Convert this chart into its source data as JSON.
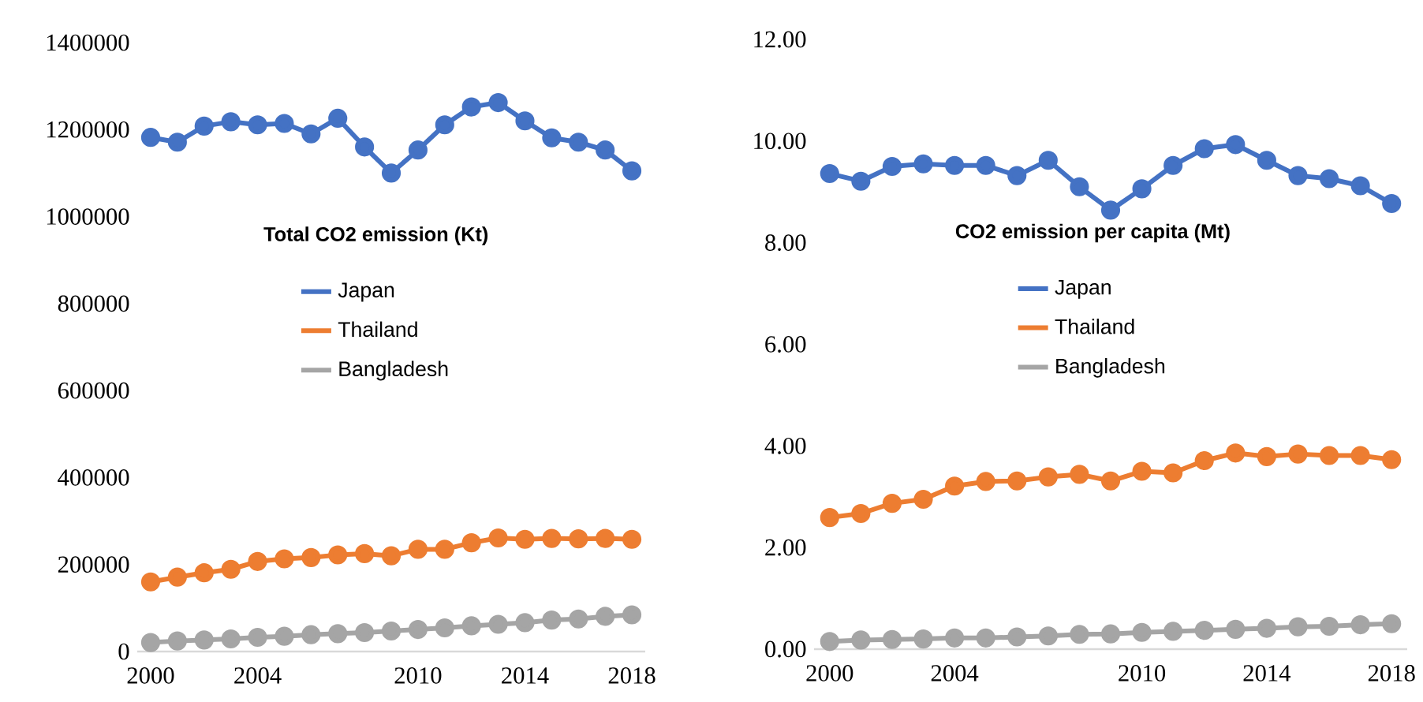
{
  "chart_data": [
    {
      "type": "line",
      "title": "Total CO2 emission (Kt)",
      "x": [
        2000,
        2001,
        2002,
        2003,
        2004,
        2005,
        2006,
        2007,
        2008,
        2009,
        2010,
        2011,
        2012,
        2013,
        2014,
        2015,
        2016,
        2017,
        2018
      ],
      "xlim": [
        1999.5,
        2018.5
      ],
      "xticks": [
        2000,
        2004,
        2010,
        2014,
        2018
      ],
      "ylim": [
        0,
        1400000
      ],
      "yticks": [
        0,
        200000,
        400000,
        600000,
        800000,
        1000000,
        1200000,
        1400000
      ],
      "marker": "circle",
      "legend": "center",
      "series": [
        {
          "name": "Japan",
          "color": "#4472c4",
          "values": [
            1182000,
            1171000,
            1208000,
            1218000,
            1211000,
            1214000,
            1190000,
            1226000,
            1160000,
            1100000,
            1153000,
            1211000,
            1252000,
            1262000,
            1220000,
            1181000,
            1171000,
            1153000,
            1105000
          ]
        },
        {
          "name": "Thailand",
          "color": "#ed7d31",
          "values": [
            160000,
            171000,
            181000,
            189000,
            207000,
            213000,
            216000,
            222000,
            225000,
            220000,
            235000,
            235000,
            250000,
            261000,
            258000,
            260000,
            259000,
            260000,
            258000
          ]
        },
        {
          "name": "Bangladesh",
          "color": "#a5a5a5",
          "values": [
            20600,
            24200,
            26500,
            28900,
            32600,
            35000,
            38600,
            41000,
            43400,
            47000,
            50600,
            54300,
            59000,
            62600,
            66300,
            72300,
            74800,
            80800,
            84300
          ]
        }
      ]
    },
    {
      "type": "line",
      "title": "CO2 emission per capita (Mt)",
      "x": [
        2000,
        2001,
        2002,
        2003,
        2004,
        2005,
        2006,
        2007,
        2008,
        2009,
        2010,
        2011,
        2012,
        2013,
        2014,
        2015,
        2016,
        2017,
        2018
      ],
      "xlim": [
        1999.5,
        2018.5
      ],
      "xticks": [
        2000,
        2004,
        2010,
        2014,
        2018
      ],
      "ylim": [
        0,
        12
      ],
      "yticks": [
        {
          "value": 0,
          "label": "0.00"
        },
        {
          "value": 2,
          "label": "2.00"
        },
        {
          "value": 4,
          "label": "4.00"
        },
        {
          "value": 6,
          "label": "6.00"
        },
        {
          "value": 8,
          "label": "8.00"
        },
        {
          "value": 10,
          "label": "10.00"
        },
        {
          "value": 12,
          "label": "12.00"
        }
      ],
      "marker": "circle",
      "legend": "center",
      "series": [
        {
          "name": "Japan",
          "color": "#4472c4",
          "values": [
            9.36,
            9.21,
            9.5,
            9.55,
            9.52,
            9.52,
            9.32,
            9.62,
            9.1,
            8.64,
            9.06,
            9.52,
            9.85,
            9.93,
            9.62,
            9.32,
            9.26,
            9.12,
            8.77
          ]
        },
        {
          "name": "Thailand",
          "color": "#ed7d31",
          "values": [
            2.59,
            2.67,
            2.87,
            2.95,
            3.21,
            3.3,
            3.31,
            3.39,
            3.44,
            3.31,
            3.5,
            3.47,
            3.71,
            3.86,
            3.79,
            3.84,
            3.81,
            3.81,
            3.73
          ]
        },
        {
          "name": "Bangladesh",
          "color": "#a5a5a5",
          "values": [
            0.15,
            0.18,
            0.19,
            0.2,
            0.22,
            0.22,
            0.24,
            0.26,
            0.29,
            0.3,
            0.33,
            0.35,
            0.37,
            0.39,
            0.41,
            0.44,
            0.45,
            0.48,
            0.5
          ]
        }
      ]
    }
  ]
}
